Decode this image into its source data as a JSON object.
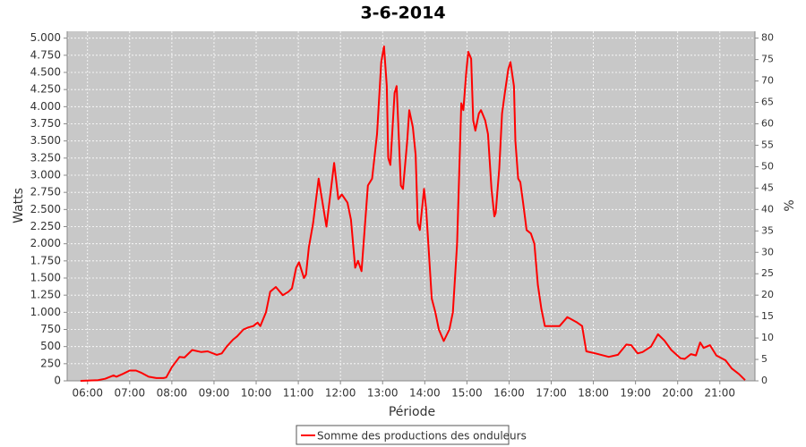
{
  "chart_data": {
    "type": "line",
    "title": "3-6-2014",
    "x_label": "Période",
    "y_label": "Watts",
    "y2_label": "%",
    "x": [
      "05:50",
      "06:15",
      "06:25",
      "06:37",
      "06:41",
      "06:50",
      "07:00",
      "07:09",
      "07:16",
      "07:27",
      "07:38",
      "07:48",
      "07:52",
      "08:00",
      "08:11",
      "08:18",
      "08:29",
      "08:42",
      "08:51",
      "09:04",
      "09:11",
      "09:18",
      "09:27",
      "09:33",
      "09:42",
      "09:49",
      "09:56",
      "10:02",
      "10:06",
      "10:14",
      "10:20",
      "10:28",
      "10:38",
      "10:46",
      "10:51",
      "10:57",
      "11:01",
      "11:08",
      "11:11",
      "11:15",
      "11:21",
      "11:29",
      "11:40",
      "11:51",
      "11:57",
      "12:02",
      "12:10",
      "12:15",
      "12:21",
      "12:25",
      "12:30",
      "12:39",
      "12:45",
      "12:52",
      "12:58",
      "13:02",
      "13:06",
      "13:08",
      "13:11",
      "13:17",
      "13:20",
      "13:26",
      "13:29",
      "13:35",
      "13:38",
      "13:43",
      "13:47",
      "13:50",
      "13:53",
      "13:59",
      "14:02",
      "14:10",
      "14:15",
      "14:20",
      "14:27",
      "14:35",
      "14:40",
      "14:46",
      "14:52",
      "14:55",
      "14:59",
      "15:02",
      "15:06",
      "15:09",
      "15:12",
      "15:17",
      "15:20",
      "15:26",
      "15:30",
      "15:35",
      "15:39",
      "15:41",
      "15:46",
      "15:50",
      "15:54",
      "15:59",
      "16:02",
      "16:07",
      "16:09",
      "16:13",
      "16:16",
      "16:20",
      "16:25",
      "16:31",
      "16:36",
      "16:41",
      "16:46",
      "16:51",
      "17:12",
      "17:23",
      "17:37",
      "17:44",
      "17:50",
      "18:03",
      "18:22",
      "18:35",
      "18:47",
      "18:54",
      "19:03",
      "19:10",
      "19:22",
      "19:32",
      "19:41",
      "19:51",
      "20:04",
      "20:10",
      "20:19",
      "20:26",
      "20:32",
      "20:37",
      "20:46",
      "20:55",
      "21:08",
      "21:17",
      "21:27",
      "21:36"
    ],
    "series": [
      {
        "name": "Somme des productions des onduleurs",
        "color": "#ff0000",
        "values": [
          0,
          10,
          30,
          80,
          60,
          100,
          150,
          150,
          120,
          60,
          40,
          40,
          50,
          200,
          350,
          340,
          450,
          420,
          430,
          380,
          400,
          500,
          600,
          650,
          750,
          780,
          800,
          850,
          800,
          1000,
          1300,
          1370,
          1250,
          1300,
          1350,
          1650,
          1730,
          1500,
          1550,
          1950,
          2300,
          2950,
          2250,
          3180,
          2650,
          2720,
          2600,
          2350,
          1650,
          1750,
          1600,
          2850,
          2950,
          3600,
          4650,
          4880,
          4300,
          3250,
          3150,
          4200,
          4300,
          2850,
          2800,
          3500,
          3950,
          3700,
          3300,
          2300,
          2200,
          2800,
          2500,
          1200,
          1000,
          750,
          580,
          750,
          1000,
          2000,
          4050,
          3950,
          4500,
          4800,
          4700,
          3800,
          3650,
          3900,
          3950,
          3800,
          3600,
          2800,
          2400,
          2450,
          3100,
          3900,
          4200,
          4550,
          4650,
          4300,
          3500,
          2950,
          2900,
          2600,
          2200,
          2150,
          2000,
          1400,
          1050,
          800,
          800,
          930,
          850,
          800,
          430,
          400,
          350,
          380,
          530,
          520,
          400,
          420,
          500,
          680,
          590,
          450,
          330,
          320,
          390,
          370,
          560,
          480,
          520,
          370,
          300,
          180,
          100,
          10
        ]
      }
    ],
    "xlim": [
      "05:31",
      "21:50"
    ],
    "xticks": [
      "06:00",
      "07:00",
      "08:00",
      "09:00",
      "10:00",
      "11:00",
      "12:00",
      "13:00",
      "14:00",
      "15:00",
      "16:00",
      "17:00",
      "18:00",
      "19:00",
      "20:00",
      "21:00"
    ],
    "ylim": [
      0,
      5100
    ],
    "yticks": [
      0,
      250,
      500,
      750,
      {
        "value": 1000,
        "label": "1.000"
      },
      {
        "value": 1250,
        "label": "1.250"
      },
      {
        "value": 1500,
        "label": "1.500"
      },
      {
        "value": 1750,
        "label": "1.750"
      },
      {
        "value": 2000,
        "label": "2.000"
      },
      {
        "value": 2250,
        "label": "2.250"
      },
      {
        "value": 2500,
        "label": "2.500"
      },
      {
        "value": 2750,
        "label": "2.750"
      },
      {
        "value": 3000,
        "label": "3.000"
      },
      {
        "value": 3250,
        "label": "3.250"
      },
      {
        "value": 3500,
        "label": "3.500"
      },
      {
        "value": 3750,
        "label": "3.750"
      },
      {
        "value": 4000,
        "label": "4.000"
      },
      {
        "value": 4250,
        "label": "4.250"
      },
      {
        "value": 4500,
        "label": "4.500"
      },
      {
        "value": 4750,
        "label": "4.750"
      },
      {
        "value": 5000,
        "label": "5.000"
      }
    ],
    "y2lim": [
      0,
      81.6
    ],
    "y2ticks": [
      0,
      5,
      10,
      15,
      20,
      25,
      30,
      35,
      40,
      45,
      50,
      55,
      60,
      65,
      70,
      75,
      80
    ],
    "grid": true
  }
}
